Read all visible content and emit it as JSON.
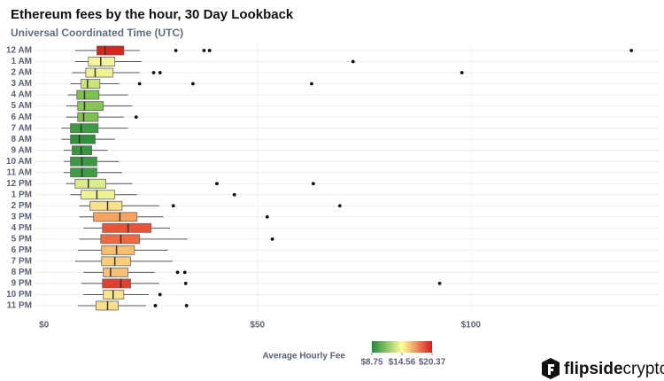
{
  "chart_data": {
    "type": "boxplot",
    "title": "Ethereum fees by the hour, 30 Day Lookback",
    "subtitle": "Universal Coordinated Time (UTC)",
    "orientation": "horizontal",
    "categories": [
      "12 AM",
      "1 AM",
      "2 AM",
      "3 AM",
      "4 AM",
      "5 AM",
      "6 AM",
      "7 AM",
      "8 AM",
      "9 AM",
      "10 AM",
      "11 AM",
      "12 PM",
      "1 PM",
      "2 PM",
      "3 PM",
      "4 PM",
      "5 PM",
      "6 PM",
      "7 PM",
      "8 PM",
      "9 PM",
      "10 PM",
      "11 PM"
    ],
    "boxes": [
      {
        "whislo": 7.3,
        "q1": 12.4,
        "med": 14.3,
        "q3": 18.7,
        "whishi": 22.4,
        "fliers": [
          30.9,
          37.5,
          38.8,
          137.6
        ],
        "color": "#d7261e"
      },
      {
        "whislo": 7.3,
        "q1": 10.4,
        "med": 13.3,
        "q3": 16.6,
        "whishi": 22.8,
        "fliers": [
          72.4
        ],
        "color": "#f3f59a"
      },
      {
        "whislo": 6.6,
        "q1": 9.8,
        "med": 12.0,
        "q3": 16.2,
        "whishi": 22.4,
        "fliers": [
          25.7,
          27.2,
          97.9
        ],
        "color": "#eef38f"
      },
      {
        "whislo": 6.2,
        "q1": 8.7,
        "med": 10.2,
        "q3": 13.1,
        "whishi": 17.6,
        "fliers": [
          22.4,
          34.9,
          62.7
        ],
        "color": "#c9e57a"
      },
      {
        "whislo": 5.6,
        "q1": 7.7,
        "med": 9.5,
        "q3": 12.9,
        "whishi": 19.7,
        "fliers": [],
        "color": "#7cc24f"
      },
      {
        "whislo": 5.2,
        "q1": 7.9,
        "med": 9.5,
        "q3": 13.9,
        "whishi": 20.7,
        "fliers": [],
        "color": "#86c653"
      },
      {
        "whislo": 5.2,
        "q1": 7.9,
        "med": 9.3,
        "q3": 12.7,
        "whishi": 18.7,
        "fliers": [
          21.6
        ],
        "color": "#7dc250"
      },
      {
        "whislo": 4.1,
        "q1": 6.2,
        "med": 8.7,
        "q3": 12.7,
        "whishi": 19.7,
        "fliers": [],
        "color": "#3c9b40"
      },
      {
        "whislo": 4.1,
        "q1": 6.2,
        "med": 8.3,
        "q3": 12.0,
        "whishi": 16.6,
        "fliers": [],
        "color": "#2e8f3b"
      },
      {
        "whislo": 4.6,
        "q1": 6.6,
        "med": 8.7,
        "q3": 11.2,
        "whishi": 14.9,
        "fliers": [],
        "color": "#36963e"
      },
      {
        "whislo": 4.6,
        "q1": 6.2,
        "med": 8.9,
        "q3": 12.4,
        "whishi": 17.6,
        "fliers": [],
        "color": "#3a9a40"
      },
      {
        "whislo": 4.6,
        "q1": 6.2,
        "med": 8.9,
        "q3": 12.4,
        "whishi": 18.3,
        "fliers": [],
        "color": "#3e9c41"
      },
      {
        "whislo": 5.2,
        "q1": 7.3,
        "med": 10.4,
        "q3": 14.5,
        "whishi": 20.7,
        "fliers": [
          40.5,
          63.1
        ],
        "color": "#dcec87"
      },
      {
        "whislo": 6.2,
        "q1": 8.7,
        "med": 12.4,
        "q3": 16.6,
        "whishi": 21.8,
        "fliers": [
          44.6
        ],
        "color": "#eff492"
      },
      {
        "whislo": 8.3,
        "q1": 10.8,
        "med": 14.9,
        "q3": 18.3,
        "whishi": 27.0,
        "fliers": [
          30.3,
          69.3
        ],
        "color": "#fbe08a"
      },
      {
        "whislo": 8.3,
        "q1": 11.6,
        "med": 17.8,
        "q3": 21.8,
        "whishi": 28.0,
        "fliers": [
          52.3
        ],
        "color": "#f6a35f"
      },
      {
        "whislo": 9.3,
        "q1": 13.7,
        "med": 19.7,
        "q3": 25.1,
        "whishi": 29.5,
        "fliers": [],
        "color": "#e95436"
      },
      {
        "whislo": 8.3,
        "q1": 13.3,
        "med": 18.0,
        "q3": 22.4,
        "whishi": 33.6,
        "fliers": [
          53.5
        ],
        "color": "#ee6a40"
      },
      {
        "whislo": 7.9,
        "q1": 13.5,
        "med": 17.0,
        "q3": 21.2,
        "whishi": 29.0,
        "fliers": [],
        "color": "#f8bf6e"
      },
      {
        "whislo": 7.3,
        "q1": 13.5,
        "med": 16.6,
        "q3": 20.3,
        "whishi": 30.1,
        "fliers": [],
        "color": "#f9cd79"
      },
      {
        "whislo": 9.3,
        "q1": 13.9,
        "med": 15.6,
        "q3": 19.7,
        "whishi": 25.9,
        "fliers": [
          31.3,
          33.0
        ],
        "color": "#f8c072"
      },
      {
        "whislo": 8.7,
        "q1": 13.7,
        "med": 18.0,
        "q3": 20.3,
        "whishi": 27.0,
        "fliers": [
          33.2,
          92.7
        ],
        "color": "#e1402c"
      },
      {
        "whislo": 9.3,
        "q1": 13.9,
        "med": 16.2,
        "q3": 18.7,
        "whishi": 24.5,
        "fliers": [
          27.2
        ],
        "color": "#fbe28c"
      },
      {
        "whislo": 7.9,
        "q1": 12.2,
        "med": 14.9,
        "q3": 17.4,
        "whishi": 23.9,
        "fliers": [
          26.1,
          33.4
        ],
        "color": "#fbe08b"
      }
    ],
    "xlim": [
      -2,
      144
    ],
    "xticks": [
      {
        "value": 0,
        "label": "$0"
      },
      {
        "value": 50,
        "label": "$50"
      },
      {
        "value": 100,
        "label": "$100"
      }
    ],
    "colorbar": {
      "title": "Average Hourly Fee",
      "colors": [
        "#1f8a3a",
        "#ffff99",
        "#d7191c"
      ],
      "ticks": [
        {
          "value": 8.75,
          "label": "$8.75"
        },
        {
          "value": 14.56,
          "label": "$14.56"
        },
        {
          "value": 20.37,
          "label": "$20.37"
        }
      ]
    }
  },
  "brand": {
    "name": "flipside",
    "suffix": "crypto"
  }
}
